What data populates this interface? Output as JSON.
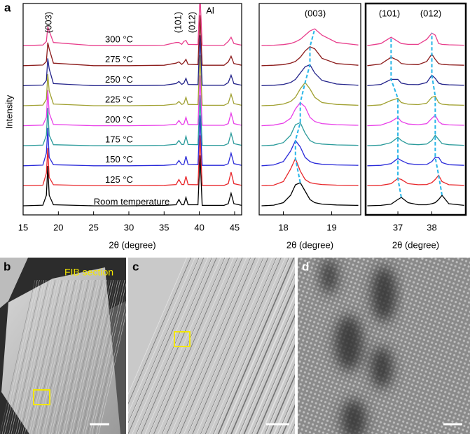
{
  "chart_data": [
    {
      "type": "line",
      "label": "a",
      "xlabel": "2θ (degree)",
      "ylabel": "Intensity",
      "xlim": [
        15,
        46
      ],
      "xticks": [
        15,
        20,
        25,
        30,
        35,
        40,
        45
      ],
      "annotations": [
        "(003)",
        "(101)",
        "(012)",
        "Al"
      ],
      "x": [
        15,
        17.8,
        18.3,
        18.5,
        18.7,
        19.3,
        25,
        30,
        35,
        36.7,
        37.1,
        37.5,
        37.8,
        38.1,
        38.4,
        39.8,
        40.1,
        40.4,
        43.5,
        44.1,
        44.5,
        44.9,
        46
      ],
      "series": [
        {
          "name": "Room temperature",
          "color": "#000000",
          "values": [
            1,
            1.3,
            6,
            20,
            6,
            1.5,
            1,
            1,
            1.2,
            1.5,
            4,
            1.5,
            1.5,
            5,
            1.5,
            1.5,
            25,
            1.2,
            1.2,
            2,
            7,
            2,
            1.2
          ]
        },
        {
          "name": "125 °C",
          "color": "#e8262a",
          "values": [
            1,
            1.3,
            7,
            19,
            5,
            1.5,
            1,
            1,
            1.2,
            1.6,
            4,
            1.6,
            1.6,
            5.5,
            1.6,
            1.5,
            25,
            1.2,
            1.2,
            2,
            7.5,
            2,
            1.2
          ]
        },
        {
          "name": "150 °C",
          "color": "#2b2bd9",
          "values": [
            1,
            1.3,
            7,
            19,
            5,
            1.5,
            1,
            1,
            1.2,
            1.6,
            3.5,
            1.6,
            1.6,
            5.5,
            1.6,
            1.5,
            25,
            1.2,
            1.2,
            2,
            7,
            2,
            1.2
          ]
        },
        {
          "name": "175 °C",
          "color": "#2a9a9a",
          "values": [
            1,
            1.3,
            6,
            19,
            6,
            1.5,
            1,
            1,
            1.2,
            1.7,
            3.5,
            1.6,
            1.7,
            5.5,
            1.6,
            1.5,
            25,
            1.2,
            1.2,
            2,
            7,
            2,
            1.2
          ]
        },
        {
          "name": "200 °C",
          "color": "#e83ee8",
          "values": [
            1,
            1.3,
            5,
            18,
            7,
            1.6,
            1,
            1,
            1.2,
            1.7,
            3.5,
            1.6,
            1.8,
            5,
            1.6,
            1.5,
            25,
            1.2,
            1.2,
            2,
            7,
            2,
            1.2
          ]
        },
        {
          "name": "225 °C",
          "color": "#a0a030",
          "values": [
            1,
            1.3,
            4,
            16,
            8,
            1.8,
            1,
            1,
            1.2,
            1.8,
            3,
            1.6,
            2,
            5,
            1.6,
            1.5,
            25,
            1.2,
            1.2,
            2.2,
            6.5,
            2,
            1.2
          ]
        },
        {
          "name": "250 °C",
          "color": "#22228a",
          "values": [
            1,
            1.3,
            3.5,
            14,
            9,
            2,
            1,
            1,
            1.2,
            2,
            3,
            1.6,
            2.2,
            4.5,
            1.6,
            1.5,
            25,
            1.2,
            1.2,
            2.5,
            6,
            2,
            1.2
          ]
        },
        {
          "name": "275 °C",
          "color": "#8b1a1a",
          "values": [
            1,
            1.3,
            3,
            12,
            9,
            2.2,
            1,
            1,
            1.2,
            2.2,
            2.8,
            1.6,
            2.5,
            4,
            1.6,
            1.5,
            25,
            1.2,
            1.2,
            2.8,
            5.5,
            2,
            1.2
          ]
        },
        {
          "name": "300 °C",
          "color": "#e83e8c",
          "values": [
            1,
            1.3,
            3,
            10,
            8,
            2.5,
            1,
            1,
            1.2,
            2.5,
            2.5,
            1.6,
            3,
            3.5,
            1.6,
            1.5,
            25,
            1.2,
            1.2,
            3,
            5,
            2,
            1.2
          ]
        }
      ]
    },
    {
      "type": "line",
      "xlabel": "2θ (degree)",
      "xlim": [
        17.5,
        19.6
      ],
      "xticks": [
        18,
        19
      ],
      "annotations": [
        "(003)"
      ],
      "x": [
        17.55,
        17.8,
        18.0,
        18.15,
        18.25,
        18.35,
        18.45,
        18.55,
        18.65,
        18.8,
        19.1,
        19.55
      ],
      "series": [
        {
          "color": "#000000",
          "values": [
            1,
            1.3,
            2.5,
            6,
            11,
            12,
            8,
            4,
            2.5,
            1.8,
            1.4,
            1.2
          ]
        },
        {
          "color": "#e8262a",
          "values": [
            1,
            1.3,
            3,
            9,
            14,
            8,
            4,
            2.5,
            2,
            1.6,
            1.3,
            1.2
          ]
        },
        {
          "color": "#2b2bd9",
          "values": [
            1,
            1.4,
            3,
            8,
            13,
            10,
            5,
            3,
            2.2,
            1.7,
            1.4,
            1.2
          ]
        },
        {
          "color": "#2a9a9a",
          "values": [
            1,
            1.3,
            2.5,
            6,
            11,
            12,
            7,
            3.5,
            2.3,
            1.8,
            1.4,
            1.2
          ]
        },
        {
          "color": "#e83ee8",
          "values": [
            1,
            1.3,
            2.2,
            4.5,
            9,
            12,
            10,
            5,
            3,
            2,
            1.5,
            1.2
          ]
        },
        {
          "color": "#a0a030",
          "values": [
            1,
            1.2,
            1.8,
            3,
            5,
            9,
            12,
            9,
            5,
            2.5,
            1.6,
            1.2
          ]
        },
        {
          "color": "#22228a",
          "values": [
            1,
            1.2,
            1.6,
            2.5,
            4,
            7,
            10,
            11,
            7,
            3.5,
            1.8,
            1.2
          ]
        },
        {
          "color": "#8b1a1a",
          "values": [
            1,
            1.2,
            1.5,
            2.2,
            3,
            5,
            8,
            10,
            9,
            4.5,
            2,
            1.2
          ]
        },
        {
          "color": "#e83e8c",
          "values": [
            1,
            1.2,
            1.5,
            2,
            2.8,
            4,
            6,
            8,
            9,
            6,
            2.5,
            1.3
          ]
        }
      ]
    },
    {
      "type": "line",
      "xlabel": "2θ (degree)",
      "xlim": [
        36.05,
        39.0
      ],
      "xticks": [
        37,
        38
      ],
      "annotations": [
        "(101)",
        "(012)"
      ],
      "x": [
        36.1,
        36.5,
        36.8,
        37.0,
        37.1,
        37.3,
        37.6,
        37.85,
        38.0,
        38.1,
        38.2,
        38.3,
        38.5,
        38.95
      ],
      "series": [
        {
          "color": "#000000",
          "values": [
            1,
            1.2,
            1.8,
            4,
            5,
            2.5,
            1.5,
            1.5,
            2,
            2.5,
            4,
            6,
            2,
            1.2
          ]
        },
        {
          "color": "#e8262a",
          "values": [
            1,
            1.2,
            2,
            4.5,
            4,
            2,
            1.5,
            1.6,
            2.5,
            4,
            6,
            3,
            1.5,
            1.2
          ]
        },
        {
          "color": "#2b2bd9",
          "values": [
            1,
            1.2,
            2,
            4.5,
            3.5,
            2,
            1.5,
            1.6,
            3,
            5,
            5,
            2.5,
            1.5,
            1.2
          ]
        },
        {
          "color": "#2a9a9a",
          "values": [
            1,
            1.3,
            2.5,
            5,
            3.5,
            1.8,
            1.5,
            1.8,
            3.5,
            6,
            4,
            2,
            1.5,
            1.2
          ]
        },
        {
          "color": "#e83ee8",
          "values": [
            1,
            1.3,
            3,
            5,
            3,
            1.8,
            1.5,
            2,
            4.5,
            6,
            3,
            1.8,
            1.4,
            1.2
          ]
        },
        {
          "color": "#a0a030",
          "values": [
            1,
            1.4,
            3.5,
            4.5,
            2.5,
            1.7,
            1.5,
            2.2,
            5,
            5.5,
            2.5,
            1.7,
            1.4,
            1.2
          ]
        },
        {
          "color": "#22228a",
          "values": [
            1,
            1.6,
            4,
            4,
            2.2,
            1.6,
            1.5,
            2.5,
            6,
            4.5,
            2.2,
            1.7,
            1.4,
            1.2
          ]
        },
        {
          "color": "#8b1a1a",
          "values": [
            1,
            1.8,
            5,
            3.5,
            2,
            1.6,
            1.5,
            3,
            6.5,
            4,
            2,
            1.6,
            1.4,
            1.2
          ]
        },
        {
          "color": "#e83e8c",
          "values": [
            1,
            2,
            5,
            3,
            2,
            1.6,
            1.6,
            4,
            7,
            6,
            2,
            1.6,
            1.4,
            1.2
          ]
        }
      ]
    }
  ],
  "panels": {
    "b": {
      "label": "b",
      "annotation": "FIB section"
    },
    "c": {
      "label": "c"
    },
    "d": {
      "label": "d"
    }
  }
}
